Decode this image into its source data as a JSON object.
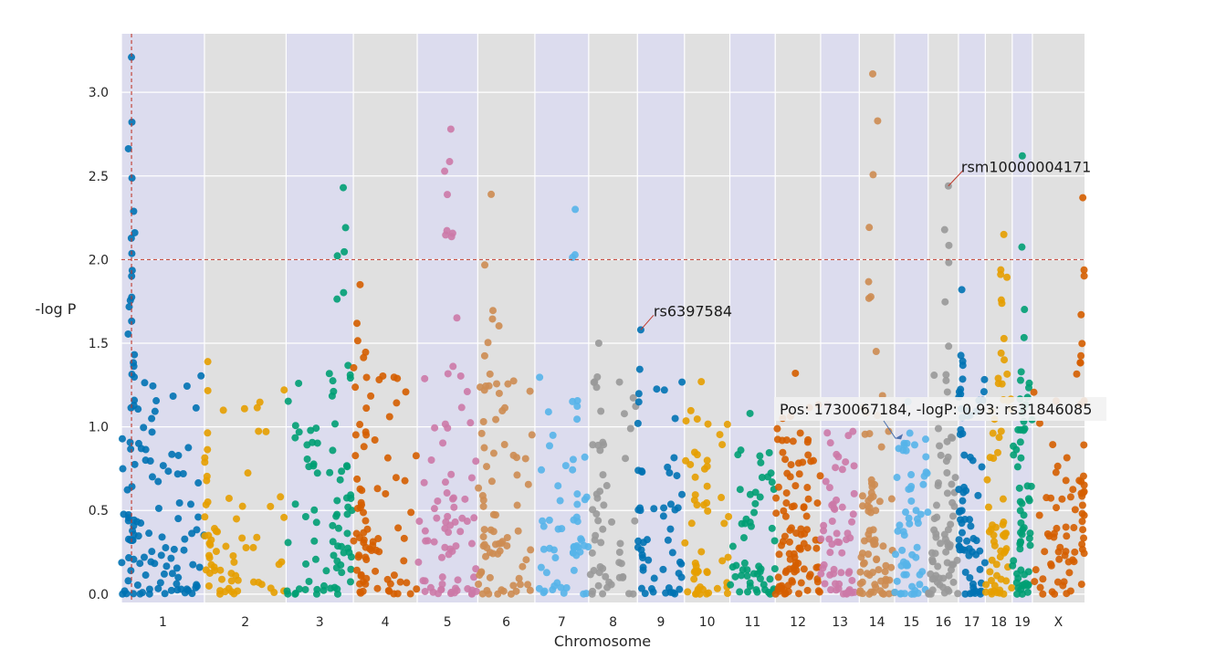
{
  "chart_data": {
    "type": "scatter",
    "title": "",
    "xlabel": "Chromosome",
    "ylabel": "-log P",
    "ylim": [
      -0.05,
      3.35
    ],
    "yticks": [
      "0.0",
      "0.5",
      "1.0",
      "1.5",
      "2.0",
      "2.5",
      "3.0"
    ],
    "threshold": 2.0,
    "highlight_chromosome": "1",
    "colors": {
      "palette": [
        "#0072b2",
        "#e69f00",
        "#009e73",
        "#d55e00",
        "#cc79a7",
        "#cd8c52",
        "#56b4e9",
        "#999999"
      ],
      "band_light": "#dcdcee",
      "band_gray": "#e0e0e0",
      "threshold_line": "#c0392b",
      "highlight_line": "#c0392b",
      "annotation_arrow": "#4c72b0",
      "label_line": "#c0392b"
    },
    "chromosomes": [
      {
        "label": "1",
        "start": 0,
        "end": 247,
        "n": 130,
        "maxy": 3.21,
        "peakPos": 30,
        "peakWidth": 10
      },
      {
        "label": "2",
        "start": 247,
        "end": 490,
        "n": 70,
        "maxy": 1.39,
        "peakPos": 10,
        "peakWidth": 20
      },
      {
        "label": "3",
        "start": 490,
        "end": 690,
        "n": 85,
        "maxy": 2.43,
        "peakPos": 170,
        "peakWidth": 25
      },
      {
        "label": "4",
        "start": 690,
        "end": 880,
        "n": 85,
        "maxy": 1.85,
        "peakPos": 20,
        "peakWidth": 20
      },
      {
        "label": "5",
        "start": 880,
        "end": 1060,
        "n": 80,
        "maxy": 2.78,
        "peakPos": 100,
        "peakWidth": 20
      },
      {
        "label": "6",
        "start": 1060,
        "end": 1230,
        "n": 80,
        "maxy": 2.39,
        "peakPos": 40,
        "peakWidth": 25
      },
      {
        "label": "7",
        "start": 1230,
        "end": 1390,
        "n": 60,
        "maxy": 2.3,
        "peakPos": 120,
        "peakWidth": 10
      },
      {
        "label": "8",
        "start": 1390,
        "end": 1535,
        "n": 55,
        "maxy": 1.5,
        "peakPos": 30,
        "peakWidth": 20
      },
      {
        "label": "9",
        "start": 1535,
        "end": 1675,
        "n": 55,
        "maxy": 1.58,
        "peakPos": 10,
        "peakWidth": 10
      },
      {
        "label": "10",
        "start": 1675,
        "end": 1810,
        "n": 55,
        "maxy": 1.27,
        "peakPos": 50,
        "peakWidth": 20
      },
      {
        "label": "11",
        "start": 1810,
        "end": 1945,
        "n": 55,
        "maxy": 1.08,
        "peakPos": 60,
        "peakWidth": 30
      },
      {
        "label": "12",
        "start": 1945,
        "end": 2080,
        "n": 100,
        "maxy": 1.32,
        "peakPos": 60,
        "peakWidth": 40
      },
      {
        "label": "13",
        "start": 2080,
        "end": 2195,
        "n": 60,
        "maxy": 1.13,
        "peakPos": 20,
        "peakWidth": 30
      },
      {
        "label": "14",
        "start": 2195,
        "end": 2300,
        "n": 80,
        "maxy": 3.11,
        "peakPos": 40,
        "peakWidth": 15
      },
      {
        "label": "15",
        "start": 2300,
        "end": 2400,
        "n": 60,
        "maxy": 1.15,
        "peakPos": 40,
        "peakWidth": 20
      },
      {
        "label": "16",
        "start": 2400,
        "end": 2490,
        "n": 75,
        "maxy": 2.44,
        "peakPos": 60,
        "peakWidth": 12
      },
      {
        "label": "17",
        "start": 2490,
        "end": 2570,
        "n": 70,
        "maxy": 1.82,
        "peakPos": 10,
        "peakWidth": 10
      },
      {
        "label": "18",
        "start": 2570,
        "end": 2650,
        "n": 65,
        "maxy": 2.15,
        "peakPos": 55,
        "peakWidth": 10
      },
      {
        "label": "19",
        "start": 2650,
        "end": 2710,
        "n": 65,
        "maxy": 2.62,
        "peakPos": 30,
        "peakWidth": 8
      },
      {
        "label": "X",
        "start": 2710,
        "end": 2865,
        "n": 80,
        "maxy": 2.37,
        "peakPos": 150,
        "peakWidth": 8
      }
    ],
    "highlighted_points": [
      {
        "id": "rs6397584",
        "chrom": "9",
        "pos": 10,
        "y": 1.58
      },
      {
        "id": "rsm10000004171",
        "chrom": "16",
        "pos": 60,
        "y": 2.44
      }
    ],
    "annotations": [
      {
        "text": "rs6397584",
        "target_chrom": "9",
        "target_pos": 10,
        "target_y": 1.58
      },
      {
        "text": "rsm10000004171",
        "target_chrom": "16",
        "target_pos": 60,
        "target_y": 2.44
      },
      {
        "text": "Pos: 1730067184, -logP: 0.93: rs31846085",
        "target_chrom": "14",
        "target_pos": 100,
        "target_y": 0.93
      }
    ]
  }
}
